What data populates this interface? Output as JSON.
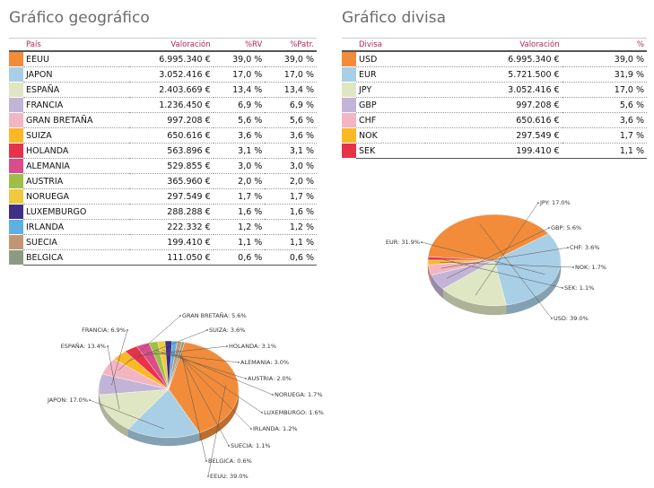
{
  "geo": {
    "title": "Gráfico geográfico",
    "headers": {
      "country": "País",
      "value": "Valoración",
      "rv": "%RV",
      "patr": "%Patr."
    },
    "rows": [
      {
        "name": "EEUU",
        "value": "6.995.340 €",
        "rv": "39,0 %",
        "patr": "39,0 %",
        "color": "#f28c3a"
      },
      {
        "name": "JAPON",
        "value": "3.052.416 €",
        "rv": "17,0 %",
        "patr": "17,0 %",
        "color": "#a9cfe6"
      },
      {
        "name": "ESPAÑA",
        "value": "2.403.669 €",
        "rv": "13,4 %",
        "patr": "13,4 %",
        "color": "#dfe6c3"
      },
      {
        "name": "FRANCIA",
        "value": "1.236.450 €",
        "rv": "6,9 %",
        "patr": "6,9 %",
        "color": "#c2b4d6"
      },
      {
        "name": "GRAN BRETAÑA",
        "value": "997.208 €",
        "rv": "5,6 %",
        "patr": "5,6 %",
        "color": "#f4b5c3"
      },
      {
        "name": "SUIZA",
        "value": "650.616 €",
        "rv": "3,6 %",
        "patr": "3,6 %",
        "color": "#fbb826"
      },
      {
        "name": "HOLANDA",
        "value": "563.896 €",
        "rv": "3,1 %",
        "patr": "3,1 %",
        "color": "#e8324a"
      },
      {
        "name": "ALEMANIA",
        "value": "529.855 €",
        "rv": "3,0 %",
        "patr": "3,0 %",
        "color": "#d94d8a"
      },
      {
        "name": "AUSTRIA",
        "value": "365.960 €",
        "rv": "2,0 %",
        "patr": "2,0 %",
        "color": "#9dbf49"
      },
      {
        "name": "NORUEGA",
        "value": "297.549 €",
        "rv": "1,7 %",
        "patr": "1,7 %",
        "color": "#f0c93e"
      },
      {
        "name": "LUXEMBURGO",
        "value": "288.288 €",
        "rv": "1,6 %",
        "patr": "1,6 %",
        "color": "#3f2f86"
      },
      {
        "name": "IRLANDA",
        "value": "222.332 €",
        "rv": "1,2 %",
        "patr": "1,2 %",
        "color": "#5fb0e0"
      },
      {
        "name": "SUECIA",
        "value": "199.410 €",
        "rv": "1,1 %",
        "patr": "1,1 %",
        "color": "#c29674"
      },
      {
        "name": "BELGICA",
        "value": "111.050 €",
        "rv": "0,6 %",
        "patr": "0,6 %",
        "color": "#8c9a84"
      }
    ]
  },
  "cur": {
    "title": "Gráfico divisa",
    "headers": {
      "currency": "Divisa",
      "value": "Valoración",
      "pct": "%"
    },
    "rows": [
      {
        "name": "USD",
        "value": "6.995.340 €",
        "pct": "39,0 %",
        "color": "#f28c3a"
      },
      {
        "name": "EUR",
        "value": "5.721.500 €",
        "pct": "31,9 %",
        "color": "#a9cfe6"
      },
      {
        "name": "JPY",
        "value": "3.052.416 €",
        "pct": "17,0 %",
        "color": "#dfe6c3"
      },
      {
        "name": "GBP",
        "value": "997.208 €",
        "pct": "5,6 %",
        "color": "#c2b4d6"
      },
      {
        "name": "CHF",
        "value": "650.616 €",
        "pct": "3,6 %",
        "color": "#f4b5c3"
      },
      {
        "name": "NOK",
        "value": "297.549 €",
        "pct": "1,7 %",
        "color": "#fbb826"
      },
      {
        "name": "SEK",
        "value": "199.410 €",
        "pct": "1,1 %",
        "color": "#e8324a"
      }
    ]
  },
  "chart_data": [
    {
      "type": "pie",
      "title": "",
      "series": [
        {
          "labels": [
            "EEUU",
            "JAPON",
            "ESPAÑA",
            "FRANCIA",
            "GRAN BRETAÑA",
            "SUIZA",
            "HOLANDA",
            "ALEMANIA",
            "AUSTRIA",
            "NORUEGA",
            "LUXEMBURGO",
            "IRLANDA",
            "SUECIA",
            "BELGICA"
          ],
          "values": [
            39.0,
            17.0,
            13.4,
            6.9,
            5.6,
            3.6,
            3.1,
            3.0,
            2.0,
            1.7,
            1.6,
            1.2,
            1.1,
            0.6
          ],
          "data_labels": [
            "EEUU: 39.0%",
            "JAPON: 17.0%",
            "ESPAÑA: 13.4%",
            "FRANCIA: 6.9%",
            "GRAN BRETAÑA: 5.6%",
            "SUIZA: 3.6%",
            "HOLANDA: 3.1%",
            "ALEMANIA: 3.0%",
            "AUSTRIA: 2.0%",
            "NORUEGA: 1.7%",
            "LUXEMBURGO: 1.6%",
            "IRLANDA: 1.2%",
            "SUECIA: 1.1%",
            "BELGICA: 0.6%"
          ],
          "colors": [
            "#f28c3a",
            "#a9cfe6",
            "#dfe6c3",
            "#c2b4d6",
            "#f4b5c3",
            "#fbb826",
            "#e8324a",
            "#d94d8a",
            "#9dbf49",
            "#f0c93e",
            "#3f2f86",
            "#5fb0e0",
            "#c29674",
            "#8c9a84"
          ]
        }
      ]
    },
    {
      "type": "pie",
      "title": "",
      "series": [
        {
          "labels": [
            "USD",
            "EUR",
            "JPY",
            "GBP",
            "CHF",
            "NOK",
            "SEK"
          ],
          "values": [
            39.0,
            31.9,
            17.0,
            5.6,
            3.6,
            1.7,
            1.1
          ],
          "data_labels": [
            "USD: 39.0%",
            "EUR: 31.9%",
            "JPY: 17.0%",
            "GBP: 5.6%",
            "CHF: 3.6%",
            "NOK: 1.7%",
            "SEK: 1.1%"
          ],
          "colors": [
            "#f28c3a",
            "#a9cfe6",
            "#dfe6c3",
            "#c2b4d6",
            "#f4b5c3",
            "#fbb826",
            "#e8324a"
          ]
        }
      ]
    }
  ]
}
